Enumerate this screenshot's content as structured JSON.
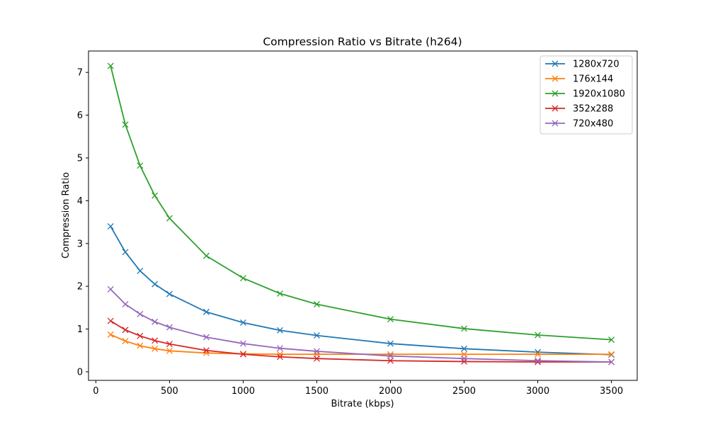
{
  "chart_data": {
    "type": "line",
    "title": "Compression Ratio vs Bitrate (h264)",
    "xlabel": "Bitrate (kbps)",
    "ylabel": "Compression Ratio",
    "xlim": [
      -50,
      3675
    ],
    "ylim": [
      -0.2,
      7.5
    ],
    "xticks": [
      0,
      500,
      1000,
      1500,
      2000,
      2500,
      3000,
      3500
    ],
    "yticks": [
      0,
      1,
      2,
      3,
      4,
      5,
      6,
      7
    ],
    "grid": false,
    "legend_position": "top-right",
    "marker": "x",
    "x": [
      100,
      200,
      300,
      400,
      500,
      750,
      1000,
      1250,
      1500,
      2000,
      2500,
      3000,
      3500
    ],
    "series": [
      {
        "name": "1280x720",
        "color": "#1f77b4",
        "values": [
          3.4,
          2.8,
          2.36,
          2.05,
          1.82,
          1.4,
          1.15,
          0.97,
          0.85,
          0.66,
          0.54,
          0.46,
          0.4
        ]
      },
      {
        "name": "176x144",
        "color": "#ff7f0e",
        "values": [
          0.87,
          0.72,
          0.61,
          0.54,
          0.49,
          0.44,
          0.42,
          0.41,
          0.41,
          0.41,
          0.41,
          0.41,
          0.41
        ]
      },
      {
        "name": "1920x1080",
        "color": "#2ca02c",
        "values": [
          7.15,
          5.78,
          4.82,
          4.12,
          3.59,
          2.71,
          2.19,
          1.83,
          1.58,
          1.23,
          1.01,
          0.86,
          0.75
        ]
      },
      {
        "name": "352x288",
        "color": "#d62728",
        "values": [
          1.19,
          0.98,
          0.84,
          0.73,
          0.65,
          0.5,
          0.41,
          0.35,
          0.31,
          0.26,
          0.24,
          0.23,
          0.23
        ]
      },
      {
        "name": "720x480",
        "color": "#9467bd",
        "values": [
          1.93,
          1.58,
          1.35,
          1.17,
          1.04,
          0.81,
          0.66,
          0.55,
          0.48,
          0.37,
          0.31,
          0.26,
          0.23
        ]
      }
    ]
  }
}
